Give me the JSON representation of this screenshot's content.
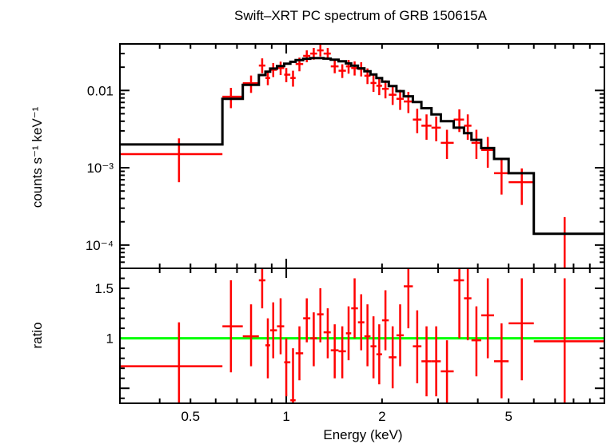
{
  "chart_data": {
    "type": "scatter",
    "title": "Swift–XRT PC spectrum of GRB 150615A",
    "xlabel": "Energy (keV)",
    "x_scale": "log",
    "xlim": [
      0.3,
      10
    ],
    "x_ticks": [
      {
        "value": 0.5,
        "label": "0.5"
      },
      {
        "value": 1,
        "label": "1"
      },
      {
        "value": 2,
        "label": "2"
      },
      {
        "value": 5,
        "label": "5"
      }
    ],
    "panels": [
      {
        "name": "spectrum",
        "ylabel": "counts s⁻¹ keV⁻¹",
        "y_scale": "log",
        "ylim": [
          5e-05,
          0.04
        ],
        "y_ticks": [
          {
            "value": 0.01,
            "label": "0.01"
          },
          {
            "value": 0.001,
            "label": "10⁻³"
          },
          {
            "value": 0.0001,
            "label": "10⁻⁴"
          }
        ],
        "series": [
          {
            "style": "crosses",
            "color": "#ff0000",
            "points": [
              {
                "x": 0.46,
                "xlo": 0.3,
                "xhi": 0.63,
                "y": 0.0015,
                "ylo": 0.00065,
                "yhi": 0.0024
              },
              {
                "x": 0.67,
                "xlo": 0.63,
                "xhi": 0.73,
                "y": 0.0083,
                "ylo": 0.0059,
                "yhi": 0.0108
              },
              {
                "x": 0.775,
                "xlo": 0.73,
                "xhi": 0.82,
                "y": 0.0124,
                "ylo": 0.0093,
                "yhi": 0.0156
              },
              {
                "x": 0.84,
                "xlo": 0.82,
                "xhi": 0.86,
                "y": 0.021,
                "ylo": 0.0167,
                "yhi": 0.026
              },
              {
                "x": 0.875,
                "xlo": 0.86,
                "xhi": 0.89,
                "y": 0.0145,
                "ylo": 0.0117,
                "yhi": 0.0178
              },
              {
                "x": 0.91,
                "xlo": 0.89,
                "xhi": 0.935,
                "y": 0.0185,
                "ylo": 0.0149,
                "yhi": 0.0226
              },
              {
                "x": 0.96,
                "xlo": 0.935,
                "xhi": 0.985,
                "y": 0.0195,
                "ylo": 0.0158,
                "yhi": 0.0236
              },
              {
                "x": 1.0,
                "xlo": 0.985,
                "xhi": 1.03,
                "y": 0.016,
                "ylo": 0.0128,
                "yhi": 0.0195
              },
              {
                "x": 1.05,
                "xlo": 1.03,
                "xhi": 1.07,
                "y": 0.0145,
                "ylo": 0.0112,
                "yhi": 0.018
              },
              {
                "x": 1.1,
                "xlo": 1.07,
                "xhi": 1.13,
                "y": 0.022,
                "ylo": 0.0177,
                "yhi": 0.0266
              },
              {
                "x": 1.16,
                "xlo": 1.13,
                "xhi": 1.19,
                "y": 0.028,
                "ylo": 0.0232,
                "yhi": 0.033
              },
              {
                "x": 1.22,
                "xlo": 1.19,
                "xhi": 1.25,
                "y": 0.03,
                "ylo": 0.025,
                "yhi": 0.0355
              },
              {
                "x": 1.28,
                "xlo": 1.25,
                "xhi": 1.31,
                "y": 0.033,
                "ylo": 0.0275,
                "yhi": 0.039
              },
              {
                "x": 1.35,
                "xlo": 1.31,
                "xhi": 1.38,
                "y": 0.03,
                "ylo": 0.025,
                "yhi": 0.0355
              },
              {
                "x": 1.42,
                "xlo": 1.38,
                "xhi": 1.46,
                "y": 0.0205,
                "ylo": 0.0167,
                "yhi": 0.0246
              },
              {
                "x": 1.5,
                "xlo": 1.46,
                "xhi": 1.54,
                "y": 0.018,
                "ylo": 0.0145,
                "yhi": 0.0218
              },
              {
                "x": 1.57,
                "xlo": 1.54,
                "xhi": 1.6,
                "y": 0.0205,
                "ylo": 0.0165,
                "yhi": 0.0248
              },
              {
                "x": 1.64,
                "xlo": 1.6,
                "xhi": 1.68,
                "y": 0.0195,
                "ylo": 0.0156,
                "yhi": 0.0238
              },
              {
                "x": 1.72,
                "xlo": 1.68,
                "xhi": 1.76,
                "y": 0.019,
                "ylo": 0.0152,
                "yhi": 0.0232
              },
              {
                "x": 1.8,
                "xlo": 1.76,
                "xhi": 1.84,
                "y": 0.0155,
                "ylo": 0.0121,
                "yhi": 0.0193
              },
              {
                "x": 1.88,
                "xlo": 1.84,
                "xhi": 1.92,
                "y": 0.0125,
                "ylo": 0.0096,
                "yhi": 0.0158
              },
              {
                "x": 1.96,
                "xlo": 1.92,
                "xhi": 2.0,
                "y": 0.0115,
                "ylo": 0.0087,
                "yhi": 0.0147
              },
              {
                "x": 2.05,
                "xlo": 2.0,
                "xhi": 2.1,
                "y": 0.0105,
                "ylo": 0.0079,
                "yhi": 0.0135
              },
              {
                "x": 2.16,
                "xlo": 2.1,
                "xhi": 2.22,
                "y": 0.0088,
                "ylo": 0.0065,
                "yhi": 0.0114
              },
              {
                "x": 2.28,
                "xlo": 2.22,
                "xhi": 2.34,
                "y": 0.0078,
                "ylo": 0.0056,
                "yhi": 0.0102
              },
              {
                "x": 2.42,
                "xlo": 2.34,
                "xhi": 2.5,
                "y": 0.0072,
                "ylo": 0.0051,
                "yhi": 0.0096
              },
              {
                "x": 2.58,
                "xlo": 2.5,
                "xhi": 2.66,
                "y": 0.0042,
                "ylo": 0.0028,
                "yhi": 0.0058
              },
              {
                "x": 2.76,
                "xlo": 2.66,
                "xhi": 2.86,
                "y": 0.0035,
                "ylo": 0.0023,
                "yhi": 0.0049
              },
              {
                "x": 2.96,
                "xlo": 2.86,
                "xhi": 3.06,
                "y": 0.0033,
                "ylo": 0.0022,
                "yhi": 0.0046
              },
              {
                "x": 3.2,
                "xlo": 3.06,
                "xhi": 3.36,
                "y": 0.0021,
                "ylo": 0.0013,
                "yhi": 0.0031
              },
              {
                "x": 3.5,
                "xlo": 3.36,
                "xhi": 3.62,
                "y": 0.0042,
                "ylo": 0.0029,
                "yhi": 0.0057
              },
              {
                "x": 3.72,
                "xlo": 3.62,
                "xhi": 3.82,
                "y": 0.0035,
                "ylo": 0.0023,
                "yhi": 0.0049
              },
              {
                "x": 3.96,
                "xlo": 3.82,
                "xhi": 4.1,
                "y": 0.0021,
                "ylo": 0.0013,
                "yhi": 0.0031
              },
              {
                "x": 4.3,
                "xlo": 4.1,
                "xhi": 4.5,
                "y": 0.0017,
                "ylo": 0.001,
                "yhi": 0.0025
              },
              {
                "x": 4.75,
                "xlo": 4.5,
                "xhi": 5.0,
                "y": 0.00085,
                "ylo": 0.00045,
                "yhi": 0.0013
              },
              {
                "x": 5.5,
                "xlo": 5.0,
                "xhi": 6.0,
                "y": 0.00065,
                "ylo": 0.00033,
                "yhi": 0.00098
              },
              {
                "x": 7.5,
                "xlo": 6.0,
                "xhi": 10.0,
                "y": 0.00014,
                "ylo": 5e-05,
                "yhi": 0.00023
              }
            ]
          },
          {
            "style": "model-histogram",
            "color": "#000000",
            "edges": [
              0.3,
              0.63,
              0.73,
              0.82,
              0.86,
              0.89,
              0.935,
              0.985,
              1.03,
              1.07,
              1.13,
              1.19,
              1.25,
              1.31,
              1.38,
              1.46,
              1.54,
              1.6,
              1.68,
              1.76,
              1.84,
              1.92,
              2.0,
              2.1,
              2.22,
              2.34,
              2.5,
              2.66,
              2.86,
              3.06,
              3.36,
              3.62,
              3.82,
              4.1,
              4.5,
              5.0,
              6.0,
              10.0
            ],
            "values": [
              0.002,
              0.0078,
              0.0118,
              0.0158,
              0.0175,
              0.0192,
              0.0207,
              0.0222,
              0.0235,
              0.0247,
              0.0257,
              0.0262,
              0.0262,
              0.0258,
              0.025,
              0.0238,
              0.0224,
              0.0209,
              0.0193,
              0.0177,
              0.0161,
              0.0145,
              0.013,
              0.0114,
              0.0098,
              0.0084,
              0.0071,
              0.0059,
              0.0049,
              0.004,
              0.0033,
              0.0028,
              0.0023,
              0.0018,
              0.0013,
              0.00085,
              0.00014
            ]
          }
        ]
      },
      {
        "name": "ratio",
        "ylabel": "ratio",
        "y_scale": "linear",
        "ylim": [
          0.35,
          1.7
        ],
        "y_ticks": [
          {
            "value": 1,
            "label": "1"
          },
          {
            "value": 1.5,
            "label": "1.5"
          }
        ],
        "reference_line": {
          "y": 1,
          "color": "#00ff00"
        },
        "series": [
          {
            "style": "crosses",
            "color": "#ff0000",
            "points": [
              {
                "x": 0.46,
                "xlo": 0.3,
                "xhi": 0.63,
                "y": 0.72,
                "ylo": 0.28,
                "yhi": 1.16
              },
              {
                "x": 0.67,
                "xlo": 0.63,
                "xhi": 0.73,
                "y": 1.12,
                "ylo": 0.66,
                "yhi": 1.58
              },
              {
                "x": 0.775,
                "xlo": 0.73,
                "xhi": 0.82,
                "y": 1.02,
                "ylo": 0.72,
                "yhi": 1.34
              },
              {
                "x": 0.84,
                "xlo": 0.82,
                "xhi": 0.86,
                "y": 1.58,
                "ylo": 1.3,
                "yhi": 1.9
              },
              {
                "x": 0.875,
                "xlo": 0.86,
                "xhi": 0.89,
                "y": 0.93,
                "ylo": 0.6,
                "yhi": 1.2
              },
              {
                "x": 0.91,
                "xlo": 0.89,
                "xhi": 0.935,
                "y": 1.08,
                "ylo": 0.8,
                "yhi": 1.36
              },
              {
                "x": 0.96,
                "xlo": 0.935,
                "xhi": 0.985,
                "y": 1.12,
                "ylo": 0.84,
                "yhi": 1.4
              },
              {
                "x": 1.0,
                "xlo": 0.985,
                "xhi": 1.03,
                "y": 0.76,
                "ylo": 0.42,
                "yhi": 1.0
              },
              {
                "x": 1.05,
                "xlo": 1.03,
                "xhi": 1.07,
                "y": 0.38,
                "ylo": 0.1,
                "yhi": 0.9
              },
              {
                "x": 1.1,
                "xlo": 1.07,
                "xhi": 1.13,
                "y": 0.85,
                "ylo": 0.58,
                "yhi": 1.12
              },
              {
                "x": 1.16,
                "xlo": 1.13,
                "xhi": 1.19,
                "y": 1.2,
                "ylo": 0.96,
                "yhi": 1.4
              },
              {
                "x": 1.22,
                "xlo": 1.19,
                "xhi": 1.25,
                "y": 1.0,
                "ylo": 0.72,
                "yhi": 1.26
              },
              {
                "x": 1.28,
                "xlo": 1.25,
                "xhi": 1.31,
                "y": 1.24,
                "ylo": 0.96,
                "yhi": 1.5
              },
              {
                "x": 1.35,
                "xlo": 1.31,
                "xhi": 1.38,
                "y": 1.06,
                "ylo": 0.8,
                "yhi": 1.3
              },
              {
                "x": 1.42,
                "xlo": 1.38,
                "xhi": 1.46,
                "y": 0.88,
                "ylo": 0.6,
                "yhi": 1.14
              },
              {
                "x": 1.5,
                "xlo": 1.46,
                "xhi": 1.54,
                "y": 0.87,
                "ylo": 0.6,
                "yhi": 1.12
              },
              {
                "x": 1.57,
                "xlo": 1.54,
                "xhi": 1.6,
                "y": 1.05,
                "ylo": 0.78,
                "yhi": 1.32
              },
              {
                "x": 1.64,
                "xlo": 1.6,
                "xhi": 1.68,
                "y": 1.3,
                "ylo": 1.0,
                "yhi": 1.6
              },
              {
                "x": 1.72,
                "xlo": 1.68,
                "xhi": 1.76,
                "y": 1.16,
                "ylo": 0.88,
                "yhi": 1.44
              },
              {
                "x": 1.8,
                "xlo": 1.76,
                "xhi": 1.84,
                "y": 1.02,
                "ylo": 0.72,
                "yhi": 1.34
              },
              {
                "x": 1.88,
                "xlo": 1.84,
                "xhi": 1.92,
                "y": 0.92,
                "ylo": 0.6,
                "yhi": 1.22
              },
              {
                "x": 1.96,
                "xlo": 1.92,
                "xhi": 2.0,
                "y": 0.84,
                "ylo": 0.54,
                "yhi": 1.14
              },
              {
                "x": 2.05,
                "xlo": 2.0,
                "xhi": 2.1,
                "y": 1.18,
                "ylo": 0.88,
                "yhi": 1.48
              },
              {
                "x": 2.16,
                "xlo": 2.1,
                "xhi": 2.22,
                "y": 0.81,
                "ylo": 0.5,
                "yhi": 1.12
              },
              {
                "x": 2.28,
                "xlo": 2.22,
                "xhi": 2.34,
                "y": 1.03,
                "ylo": 0.72,
                "yhi": 1.34
              },
              {
                "x": 2.42,
                "xlo": 2.34,
                "xhi": 2.5,
                "y": 1.52,
                "ylo": 1.1,
                "yhi": 1.9
              },
              {
                "x": 2.58,
                "xlo": 2.5,
                "xhi": 2.66,
                "y": 0.92,
                "ylo": 0.55,
                "yhi": 1.28
              },
              {
                "x": 2.76,
                "xlo": 2.66,
                "xhi": 2.86,
                "y": 0.77,
                "ylo": 0.42,
                "yhi": 1.12
              },
              {
                "x": 2.96,
                "xlo": 2.86,
                "xhi": 3.06,
                "y": 0.77,
                "ylo": 0.42,
                "yhi": 1.12
              },
              {
                "x": 3.2,
                "xlo": 3.06,
                "xhi": 3.36,
                "y": 0.67,
                "ylo": 0.32,
                "yhi": 0.98
              },
              {
                "x": 3.5,
                "xlo": 3.36,
                "xhi": 3.62,
                "y": 1.58,
                "ylo": 1.0,
                "yhi": 2.0
              },
              {
                "x": 3.72,
                "xlo": 3.62,
                "xhi": 3.82,
                "y": 1.4,
                "ylo": 0.98,
                "yhi": 1.8
              },
              {
                "x": 3.96,
                "xlo": 3.82,
                "xhi": 4.1,
                "y": 0.98,
                "ylo": 0.62,
                "yhi": 1.32
              },
              {
                "x": 4.3,
                "xlo": 4.1,
                "xhi": 4.5,
                "y": 1.23,
                "ylo": 0.8,
                "yhi": 1.6
              },
              {
                "x": 4.75,
                "xlo": 4.5,
                "xhi": 5.0,
                "y": 0.77,
                "ylo": 0.4,
                "yhi": 1.15
              },
              {
                "x": 5.5,
                "xlo": 5.0,
                "xhi": 6.0,
                "y": 1.15,
                "ylo": 0.58,
                "yhi": 1.6
              },
              {
                "x": 7.5,
                "xlo": 6.0,
                "xhi": 10.0,
                "y": 0.97,
                "ylo": 0.35,
                "yhi": 1.6
              }
            ]
          }
        ]
      }
    ]
  }
}
